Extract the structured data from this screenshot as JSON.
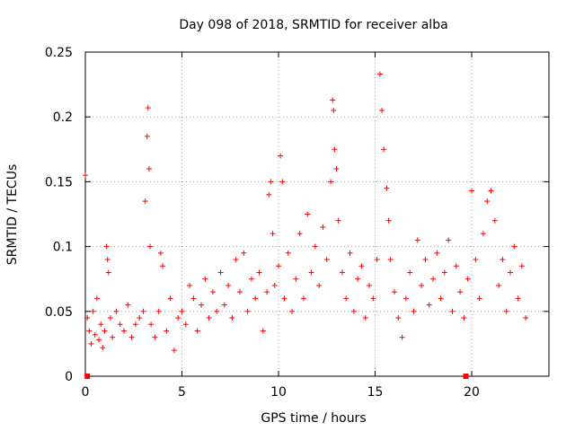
{
  "chart_data": {
    "type": "scatter",
    "title": "Day 098 of 2018, SRMTID for receiver alba",
    "xlabel": "GPS time / hours",
    "ylabel": "SRMTID / TECUs",
    "xlim": [
      0,
      24
    ],
    "ylim": [
      0,
      0.25
    ],
    "x_ticks": [
      0,
      5,
      10,
      15,
      20
    ],
    "x_tick_labels": [
      "0",
      "5",
      "10",
      "15",
      "20"
    ],
    "y_ticks": [
      0,
      0.05,
      0.1,
      0.15,
      0.2,
      0.25
    ],
    "y_tick_labels": [
      "0",
      "0.05",
      "0.1",
      "0.15",
      "0.2",
      "0.25"
    ],
    "grid": true,
    "marker": "+",
    "series_color": "#ff0000",
    "baseline_markers_x": [
      0.1,
      19.7
    ],
    "series": [
      {
        "name": "SRMTID",
        "points": [
          [
            0.0,
            0.155
          ],
          [
            0.1,
            0.045
          ],
          [
            0.2,
            0.035
          ],
          [
            0.3,
            0.025
          ],
          [
            0.4,
            0.05
          ],
          [
            0.5,
            0.032
          ],
          [
            0.6,
            0.06
          ],
          [
            0.7,
            0.028
          ],
          [
            0.8,
            0.04
          ],
          [
            0.9,
            0.022
          ],
          [
            1.0,
            0.035
          ],
          [
            1.1,
            0.1
          ],
          [
            1.15,
            0.09
          ],
          [
            1.2,
            0.08
          ],
          [
            1.3,
            0.045
          ],
          [
            1.4,
            0.03
          ],
          [
            1.6,
            0.05
          ],
          [
            1.8,
            0.04
          ],
          [
            2.0,
            0.035
          ],
          [
            2.2,
            0.055
          ],
          [
            2.4,
            0.03
          ],
          [
            2.6,
            0.04
          ],
          [
            2.8,
            0.045
          ],
          [
            3.0,
            0.05
          ],
          [
            3.1,
            0.135
          ],
          [
            3.2,
            0.185
          ],
          [
            3.25,
            0.207
          ],
          [
            3.3,
            0.16
          ],
          [
            3.35,
            0.1
          ],
          [
            3.4,
            0.04
          ],
          [
            3.6,
            0.03
          ],
          [
            3.8,
            0.05
          ],
          [
            3.9,
            0.095
          ],
          [
            4.0,
            0.085
          ],
          [
            4.2,
            0.035
          ],
          [
            4.4,
            0.06
          ],
          [
            4.6,
            0.02
          ],
          [
            4.8,
            0.045
          ],
          [
            5.0,
            0.05
          ],
          [
            5.2,
            0.04
          ],
          [
            5.4,
            0.07
          ],
          [
            5.6,
            0.06
          ],
          [
            5.8,
            0.035
          ],
          [
            6.0,
            0.055
          ],
          [
            6.2,
            0.075
          ],
          [
            6.4,
            0.045
          ],
          [
            6.6,
            0.065
          ],
          [
            6.8,
            0.05
          ],
          [
            7.0,
            0.08
          ],
          [
            7.2,
            0.055
          ],
          [
            7.4,
            0.07
          ],
          [
            7.6,
            0.045
          ],
          [
            7.8,
            0.09
          ],
          [
            8.0,
            0.065
          ],
          [
            8.2,
            0.095
          ],
          [
            8.4,
            0.05
          ],
          [
            8.6,
            0.075
          ],
          [
            8.8,
            0.06
          ],
          [
            9.0,
            0.08
          ],
          [
            9.2,
            0.035
          ],
          [
            9.4,
            0.065
          ],
          [
            9.5,
            0.14
          ],
          [
            9.6,
            0.15
          ],
          [
            9.7,
            0.11
          ],
          [
            9.8,
            0.07
          ],
          [
            10.0,
            0.085
          ],
          [
            10.1,
            0.17
          ],
          [
            10.2,
            0.15
          ],
          [
            10.3,
            0.06
          ],
          [
            10.5,
            0.095
          ],
          [
            10.7,
            0.05
          ],
          [
            10.9,
            0.075
          ],
          [
            11.1,
            0.11
          ],
          [
            11.3,
            0.06
          ],
          [
            11.5,
            0.125
          ],
          [
            11.7,
            0.08
          ],
          [
            11.9,
            0.1
          ],
          [
            12.1,
            0.07
          ],
          [
            12.3,
            0.115
          ],
          [
            12.5,
            0.09
          ],
          [
            12.7,
            0.15
          ],
          [
            12.8,
            0.213
          ],
          [
            12.85,
            0.205
          ],
          [
            12.9,
            0.175
          ],
          [
            13.0,
            0.16
          ],
          [
            13.1,
            0.12
          ],
          [
            13.3,
            0.08
          ],
          [
            13.5,
            0.06
          ],
          [
            13.7,
            0.095
          ],
          [
            13.9,
            0.05
          ],
          [
            14.1,
            0.075
          ],
          [
            14.3,
            0.085
          ],
          [
            14.5,
            0.045
          ],
          [
            14.7,
            0.07
          ],
          [
            14.9,
            0.06
          ],
          [
            15.1,
            0.09
          ],
          [
            15.25,
            0.233
          ],
          [
            15.35,
            0.205
          ],
          [
            15.45,
            0.175
          ],
          [
            15.6,
            0.145
          ],
          [
            15.7,
            0.12
          ],
          [
            15.8,
            0.09
          ],
          [
            16.0,
            0.065
          ],
          [
            16.2,
            0.045
          ],
          [
            16.4,
            0.03
          ],
          [
            16.6,
            0.06
          ],
          [
            16.8,
            0.08
          ],
          [
            17.0,
            0.05
          ],
          [
            17.2,
            0.105
          ],
          [
            17.4,
            0.07
          ],
          [
            17.6,
            0.09
          ],
          [
            17.8,
            0.055
          ],
          [
            18.0,
            0.075
          ],
          [
            18.2,
            0.095
          ],
          [
            18.4,
            0.06
          ],
          [
            18.6,
            0.08
          ],
          [
            18.8,
            0.105
          ],
          [
            19.0,
            0.05
          ],
          [
            19.2,
            0.085
          ],
          [
            19.4,
            0.065
          ],
          [
            19.6,
            0.045
          ],
          [
            19.8,
            0.075
          ],
          [
            20.0,
            0.143
          ],
          [
            20.2,
            0.09
          ],
          [
            20.4,
            0.06
          ],
          [
            20.6,
            0.11
          ],
          [
            20.8,
            0.135
          ],
          [
            21.0,
            0.143
          ],
          [
            21.2,
            0.12
          ],
          [
            21.4,
            0.07
          ],
          [
            21.6,
            0.09
          ],
          [
            21.8,
            0.05
          ],
          [
            22.0,
            0.08
          ],
          [
            22.2,
            0.1
          ],
          [
            22.4,
            0.06
          ],
          [
            22.6,
            0.085
          ],
          [
            22.8,
            0.045
          ]
        ]
      }
    ]
  }
}
